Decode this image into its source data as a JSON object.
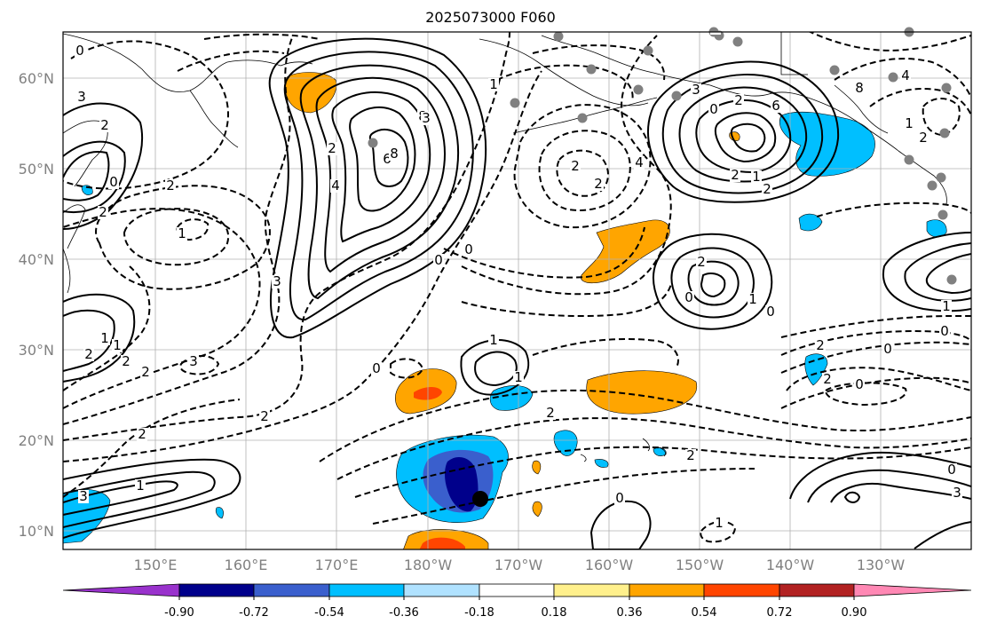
{
  "map": {
    "title": "2025073000 F060",
    "lon_labels": [
      "150°E",
      "160°E",
      "170°E",
      "180°W",
      "170°W",
      "160°W",
      "150°W",
      "140°W",
      "130°W"
    ],
    "lat_labels": [
      "60°N",
      "50°N",
      "40°N",
      "30°N",
      "20°N",
      "10°N"
    ],
    "contour_labels": [
      "0",
      "3",
      "2",
      "0",
      "2",
      "1",
      "2",
      "3",
      "3",
      "4",
      "6",
      "8",
      "8",
      "3",
      "2",
      "0",
      "0",
      "1",
      "2",
      "2",
      "4",
      "3",
      "1",
      "0",
      "2",
      "6",
      "8",
      "4",
      "2",
      "1",
      "2",
      "1",
      "2",
      "0",
      "1",
      "2",
      "0",
      "1",
      "1",
      "2",
      "0",
      "2",
      "2",
      "1",
      "3",
      "2",
      "2",
      "1",
      "2",
      "1",
      "1",
      "0",
      "0",
      "2",
      "0",
      "2",
      "0",
      "3",
      "0",
      "1",
      "2"
    ],
    "colorbar": {
      "labels": [
        "-0.90",
        "-0.72",
        "-0.54",
        "-0.36",
        "-0.18",
        "0.18",
        "0.36",
        "0.54",
        "0.72",
        "0.90"
      ],
      "colors": [
        "#9932cc",
        "#00008b",
        "#3a5fcd",
        "#00bfff",
        "#b0e2ff",
        "#ffffff",
        "#fff08c",
        "#ffa500",
        "#ff4500",
        "#b22222",
        "#ff88b4"
      ]
    }
  }
}
